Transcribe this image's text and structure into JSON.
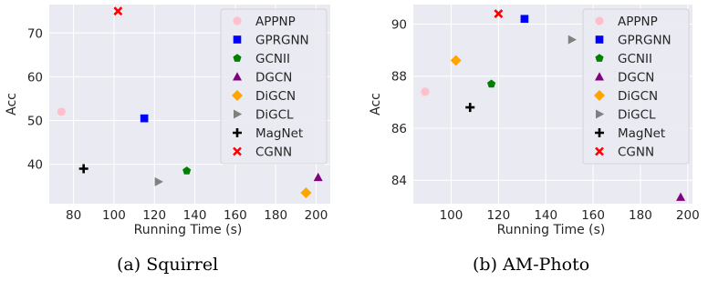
{
  "chart_data": [
    {
      "type": "scatter",
      "title": "",
      "caption": "(a) Squirrel",
      "xlabel": "Running Time (s)",
      "ylabel": "Acc",
      "xlim": [
        68,
        207
      ],
      "ylim": [
        31,
        76.5
      ],
      "xticks": [
        80,
        100,
        120,
        140,
        160,
        180,
        200
      ],
      "yticks": [
        40,
        50,
        60,
        70
      ],
      "grid": true,
      "legend_position": "top-right",
      "series": [
        {
          "name": "APPNP",
          "marker": "circle",
          "color": "#ffc0cb",
          "x": [
            74
          ],
          "y": [
            52
          ]
        },
        {
          "name": "GPRGNN",
          "marker": "square",
          "color": "#0000ff",
          "x": [
            115
          ],
          "y": [
            50.5
          ]
        },
        {
          "name": "GCNII",
          "marker": "pentagon",
          "color": "#008000",
          "x": [
            136
          ],
          "y": [
            38.5
          ]
        },
        {
          "name": "DGCN",
          "marker": "triangle",
          "color": "#800080",
          "x": [
            201
          ],
          "y": [
            37
          ]
        },
        {
          "name": "DiGCN",
          "marker": "diamond",
          "color": "#ffa500",
          "x": [
            195
          ],
          "y": [
            33.5
          ]
        },
        {
          "name": "DiGCL",
          "marker": "triangle-right",
          "color": "#808080",
          "x": [
            122
          ],
          "y": [
            36
          ]
        },
        {
          "name": "MagNet",
          "marker": "plus",
          "color": "#000000",
          "x": [
            85
          ],
          "y": [
            39
          ]
        },
        {
          "name": "CGNN",
          "marker": "x",
          "color": "#ff0000",
          "x": [
            102
          ],
          "y": [
            75
          ]
        }
      ]
    },
    {
      "type": "scatter",
      "title": "",
      "caption": "(b) AM-Photo",
      "xlabel": "Running Time (s)",
      "ylabel": "Acc",
      "xlim": [
        84,
        202
      ],
      "ylim": [
        83.1,
        90.75
      ],
      "xticks": [
        100,
        120,
        140,
        160,
        180,
        200
      ],
      "yticks": [
        84,
        86,
        88,
        90
      ],
      "grid": true,
      "legend_position": "top-right",
      "series": [
        {
          "name": "APPNP",
          "marker": "circle",
          "color": "#ffc0cb",
          "x": [
            89
          ],
          "y": [
            87.4
          ]
        },
        {
          "name": "GPRGNN",
          "marker": "square",
          "color": "#0000ff",
          "x": [
            131
          ],
          "y": [
            90.2
          ]
        },
        {
          "name": "GCNII",
          "marker": "pentagon",
          "color": "#008000",
          "x": [
            117
          ],
          "y": [
            87.7
          ]
        },
        {
          "name": "DGCN",
          "marker": "triangle",
          "color": "#800080",
          "x": [
            197
          ],
          "y": [
            83.35
          ]
        },
        {
          "name": "DiGCN",
          "marker": "diamond",
          "color": "#ffa500",
          "x": [
            102
          ],
          "y": [
            88.6
          ]
        },
        {
          "name": "DiGCL",
          "marker": "triangle-right",
          "color": "#808080",
          "x": [
            151
          ],
          "y": [
            89.4
          ]
        },
        {
          "name": "MagNet",
          "marker": "plus",
          "color": "#000000",
          "x": [
            108
          ],
          "y": [
            86.8
          ]
        },
        {
          "name": "CGNN",
          "marker": "x",
          "color": "#ff0000",
          "x": [
            120
          ],
          "y": [
            90.4
          ]
        }
      ]
    }
  ]
}
